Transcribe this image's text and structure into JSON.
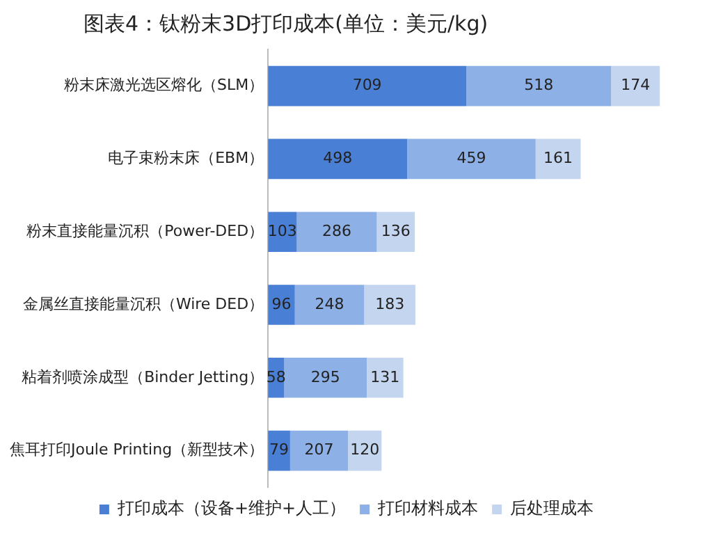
{
  "chart_data": {
    "type": "bar",
    "orientation": "horizontal",
    "stacked": true,
    "title": "图表4：钛粉末3D打印成本(单位：美元/kg)",
    "categories": [
      "粉末床激光选区熔化（SLM）",
      "电子束粉末床（EBM）",
      "粉末直接能量沉积（Power-DED）",
      "金属丝直接能量沉积（Wire DED）",
      "粘着剂喷涂成型（Binder Jetting）",
      "焦耳打印Joule Printing（新型技术）"
    ],
    "series": [
      {
        "name": "打印成本（设备+维护+人工）",
        "color": "#4a7fd6",
        "values": [
          709,
          498,
          103,
          96,
          58,
          79
        ]
      },
      {
        "name": "打印材料成本",
        "color": "#8db0e6",
        "values": [
          518,
          459,
          286,
          248,
          295,
          207
        ]
      },
      {
        "name": "后处理成本",
        "color": "#c4d5f0",
        "values": [
          174,
          161,
          136,
          183,
          131,
          120
        ]
      }
    ],
    "data_labels": true,
    "legend": "bottom"
  }
}
